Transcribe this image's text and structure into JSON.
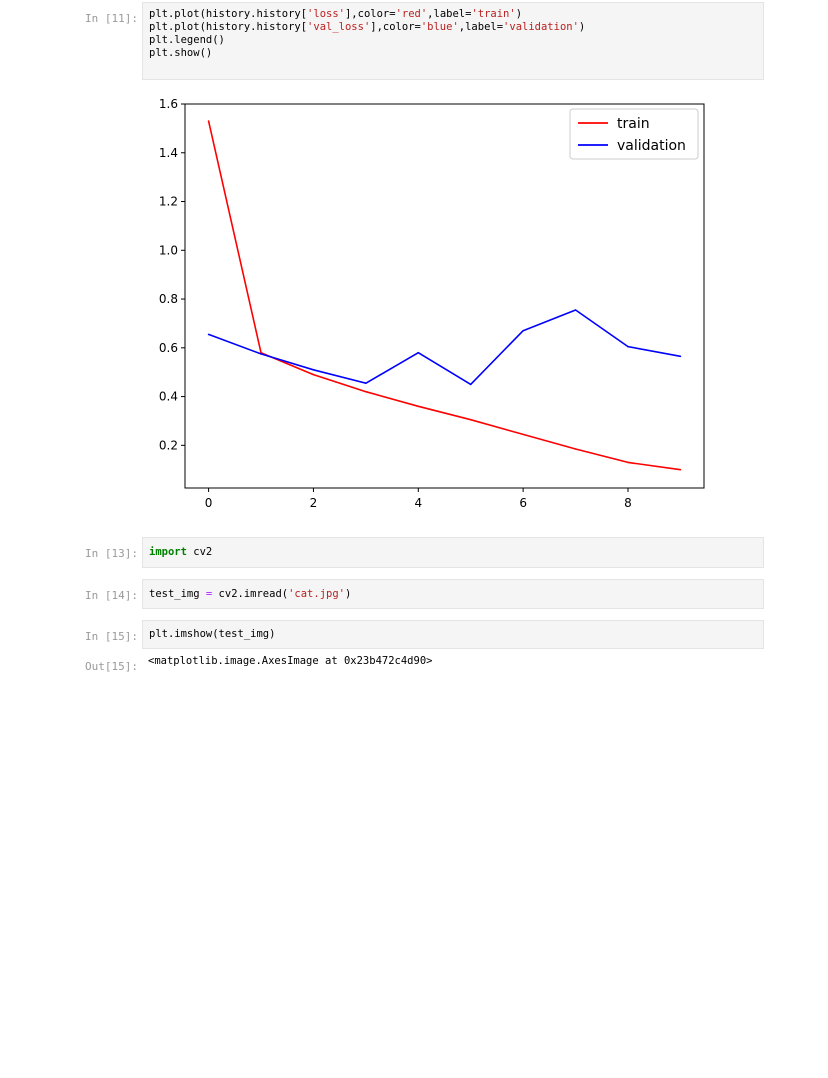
{
  "cells": [
    {
      "prompt": "In [11]:",
      "lines": [
        [
          "plt.plot(history.history[",
          {
            "s": "'loss'"
          },
          "],color=",
          {
            "s": "'red'"
          },
          ",label=",
          {
            "s": "'train'"
          },
          ")"
        ],
        [
          "plt.plot(history.history[",
          {
            "s": "'val_loss'"
          },
          "],color=",
          {
            "s": "'blue'"
          },
          ",label=",
          {
            "s": "'validation'"
          },
          ")"
        ],
        [
          "plt.legend()"
        ],
        [
          "plt.show()"
        ]
      ]
    },
    {
      "prompt": "In [13]:",
      "lines": [
        [
          {
            "k": "import"
          },
          " cv2"
        ]
      ]
    },
    {
      "prompt": "In [14]:",
      "lines": [
        [
          "test_img ",
          {
            "o": "="
          },
          " cv2.imread(",
          {
            "s": "'cat.jpg'"
          },
          ")"
        ]
      ]
    },
    {
      "prompt": "In [15]:",
      "lines": [
        [
          "plt.imshow(test_img)"
        ]
      ]
    }
  ],
  "output": {
    "prompt": "Out[15]:",
    "text": "<matplotlib.image.AxesImage at 0x23b472c4d90>"
  },
  "colors": {
    "train": "#ff0000",
    "validation": "#0000ff"
  },
  "chart_data": {
    "type": "line",
    "x": [
      0,
      1,
      2,
      3,
      4,
      5,
      6,
      7,
      8,
      9
    ],
    "series": [
      {
        "name": "train",
        "color": "#ff0000",
        "values": [
          1.53,
          0.58,
          0.49,
          0.42,
          0.36,
          0.305,
          0.245,
          0.185,
          0.13,
          0.1
        ]
      },
      {
        "name": "validation",
        "color": "#0000ff",
        "values": [
          0.655,
          0.575,
          0.51,
          0.455,
          0.58,
          0.45,
          0.67,
          0.755,
          0.605,
          0.565
        ]
      }
    ],
    "xticks": [
      0,
      2,
      4,
      6,
      8
    ],
    "yticks": [
      0.2,
      0.4,
      0.6,
      0.8,
      1.0,
      1.2,
      1.4,
      1.6
    ],
    "ytick_labels": [
      "0.2",
      "0.4",
      "0.6",
      "0.8",
      "1.0",
      "1.2",
      "1.4",
      "1.6"
    ],
    "xlim": [
      -0.45,
      9.45
    ],
    "ylim": [
      0.025,
      1.6
    ],
    "legend_position": "upper right",
    "grid": false
  }
}
